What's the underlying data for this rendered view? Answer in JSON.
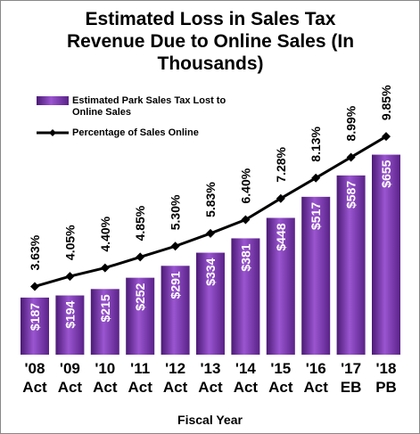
{
  "chart_data": {
    "type": "bar_line",
    "title": "Estimated Loss in Sales Tax Revenue Due to Online Sales (In Thousands)",
    "xlabel": "Fiscal Year",
    "categories": [
      "'08 Act",
      "'09 Act",
      "'10 Act",
      "'11 Act",
      "'12 Act",
      "'13 Act",
      "'14 Act",
      "'15 Act",
      "'16 Act",
      "'17 EB",
      "'18 PB"
    ],
    "series": [
      {
        "name": "Estimated Park Sales Tax Lost to Online Sales",
        "type": "bar",
        "color": "#7030a0",
        "values": [
          187,
          194,
          215,
          252,
          291,
          334,
          381,
          448,
          517,
          587,
          655
        ],
        "value_labels": [
          "$187",
          "$194",
          "$215",
          "$252",
          "$291",
          "$334",
          "$381",
          "$448",
          "$517",
          "$587",
          "$655"
        ]
      },
      {
        "name": "Percentage of Sales Online",
        "type": "line",
        "color": "#000000",
        "axis": "y2",
        "values": [
          3.63,
          4.05,
          4.4,
          4.85,
          5.3,
          5.83,
          6.4,
          7.28,
          8.13,
          8.99,
          9.85
        ],
        "value_labels": [
          "3.63%",
          "4.05%",
          "4.40%",
          "4.85%",
          "5.30%",
          "5.83%",
          "6.40%",
          "7.28%",
          "8.13%",
          "8.99%",
          "9.85%"
        ]
      }
    ],
    "ylim": [
      0,
      750
    ],
    "y2lim": [
      0.8,
      10.3
    ],
    "legend": "upper left"
  }
}
